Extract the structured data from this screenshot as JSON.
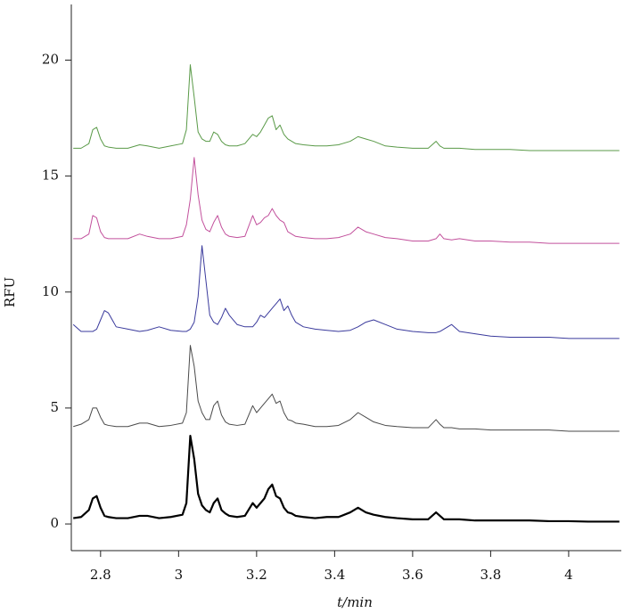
{
  "chart_data": {
    "type": "line",
    "xlabel": "t/min",
    "ylabel": "RFU",
    "xlim": [
      2.725,
      4.135
    ],
    "xticks": [
      2.8,
      3,
      3.2,
      3.4,
      3.6,
      3.8,
      4
    ],
    "ylim": [
      -1.15,
      22.4
    ],
    "yticks": [
      0,
      5,
      10,
      15,
      20
    ],
    "grid": false,
    "x": [
      2.73,
      2.75,
      2.77,
      2.78,
      2.79,
      2.8,
      2.81,
      2.82,
      2.84,
      2.87,
      2.9,
      2.92,
      2.95,
      2.98,
      3.01,
      3.02,
      3.03,
      3.04,
      3.05,
      3.06,
      3.07,
      3.08,
      3.09,
      3.1,
      3.11,
      3.12,
      3.13,
      3.15,
      3.17,
      3.19,
      3.2,
      3.21,
      3.22,
      3.23,
      3.24,
      3.25,
      3.26,
      3.27,
      3.28,
      3.29,
      3.3,
      3.32,
      3.35,
      3.38,
      3.41,
      3.44,
      3.46,
      3.48,
      3.5,
      3.53,
      3.56,
      3.6,
      3.64,
      3.66,
      3.67,
      3.68,
      3.7,
      3.72,
      3.76,
      3.8,
      3.85,
      3.9,
      3.95,
      4.0,
      4.05,
      4.1,
      4.13
    ],
    "series": [
      {
        "color": "#000000",
        "line_width": 2.2,
        "values": [
          0.25,
          0.3,
          0.6,
          1.1,
          1.2,
          0.7,
          0.35,
          0.3,
          0.25,
          0.25,
          0.35,
          0.35,
          0.25,
          0.3,
          0.4,
          0.9,
          3.8,
          2.8,
          1.3,
          0.8,
          0.6,
          0.5,
          0.9,
          1.1,
          0.6,
          0.45,
          0.35,
          0.3,
          0.35,
          0.9,
          0.7,
          0.9,
          1.1,
          1.5,
          1.7,
          1.2,
          1.1,
          0.7,
          0.5,
          0.45,
          0.35,
          0.3,
          0.25,
          0.3,
          0.3,
          0.5,
          0.7,
          0.5,
          0.4,
          0.3,
          0.25,
          0.2,
          0.2,
          0.5,
          0.35,
          0.2,
          0.2,
          0.2,
          0.15,
          0.15,
          0.15,
          0.15,
          0.12,
          0.12,
          0.1,
          0.1,
          0.1
        ]
      },
      {
        "color": "#4a4a4a",
        "line_width": 1,
        "values": [
          4.2,
          4.3,
          4.5,
          5.0,
          5.0,
          4.6,
          4.3,
          4.25,
          4.2,
          4.2,
          4.35,
          4.35,
          4.2,
          4.25,
          4.35,
          4.8,
          7.7,
          6.8,
          5.3,
          4.8,
          4.5,
          4.5,
          5.1,
          5.3,
          4.7,
          4.4,
          4.3,
          4.25,
          4.3,
          5.1,
          4.8,
          5.0,
          5.2,
          5.4,
          5.6,
          5.2,
          5.3,
          4.8,
          4.5,
          4.45,
          4.35,
          4.3,
          4.2,
          4.2,
          4.25,
          4.5,
          4.8,
          4.6,
          4.4,
          4.25,
          4.2,
          4.15,
          4.15,
          4.5,
          4.3,
          4.15,
          4.15,
          4.1,
          4.1,
          4.05,
          4.05,
          4.05,
          4.05,
          4.0,
          4.0,
          4.0,
          4.0
        ]
      },
      {
        "color": "#3a3a9c",
        "line_width": 1,
        "values": [
          8.6,
          8.3,
          8.3,
          8.3,
          8.4,
          8.8,
          9.2,
          9.1,
          8.5,
          8.4,
          8.3,
          8.35,
          8.5,
          8.35,
          8.3,
          8.3,
          8.4,
          8.7,
          9.8,
          12.0,
          10.5,
          9.0,
          8.7,
          8.6,
          8.9,
          9.3,
          9.0,
          8.6,
          8.5,
          8.5,
          8.7,
          9.0,
          8.9,
          9.1,
          9.3,
          9.5,
          9.7,
          9.2,
          9.4,
          9.0,
          8.7,
          8.5,
          8.4,
          8.35,
          8.3,
          8.35,
          8.5,
          8.7,
          8.8,
          8.6,
          8.4,
          8.3,
          8.25,
          8.25,
          8.3,
          8.4,
          8.6,
          8.3,
          8.2,
          8.1,
          8.05,
          8.05,
          8.05,
          8.0,
          8.0,
          8.0,
          8.0
        ]
      },
      {
        "color": "#c2509c",
        "line_width": 1,
        "values": [
          12.3,
          12.3,
          12.5,
          13.3,
          13.2,
          12.6,
          12.35,
          12.3,
          12.3,
          12.3,
          12.5,
          12.4,
          12.3,
          12.3,
          12.4,
          12.9,
          14.0,
          15.8,
          14.2,
          13.1,
          12.7,
          12.6,
          13.0,
          13.3,
          12.8,
          12.5,
          12.4,
          12.35,
          12.4,
          13.3,
          12.9,
          13.0,
          13.2,
          13.3,
          13.6,
          13.3,
          13.1,
          13.0,
          12.6,
          12.5,
          12.4,
          12.35,
          12.3,
          12.3,
          12.35,
          12.5,
          12.8,
          12.6,
          12.5,
          12.35,
          12.3,
          12.2,
          12.2,
          12.3,
          12.5,
          12.3,
          12.25,
          12.3,
          12.2,
          12.2,
          12.15,
          12.15,
          12.1,
          12.1,
          12.1,
          12.1,
          12.1
        ]
      },
      {
        "color": "#5a9a48",
        "line_width": 1,
        "values": [
          16.2,
          16.2,
          16.4,
          17.0,
          17.1,
          16.6,
          16.3,
          16.25,
          16.2,
          16.2,
          16.35,
          16.3,
          16.2,
          16.3,
          16.4,
          17.0,
          19.8,
          18.4,
          16.9,
          16.6,
          16.5,
          16.5,
          16.9,
          16.8,
          16.5,
          16.35,
          16.3,
          16.3,
          16.4,
          16.8,
          16.7,
          16.9,
          17.2,
          17.5,
          17.6,
          17.0,
          17.2,
          16.8,
          16.6,
          16.5,
          16.4,
          16.35,
          16.3,
          16.3,
          16.35,
          16.5,
          16.7,
          16.6,
          16.5,
          16.3,
          16.25,
          16.2,
          16.2,
          16.5,
          16.3,
          16.2,
          16.2,
          16.2,
          16.15,
          16.15,
          16.15,
          16.1,
          16.1,
          16.1,
          16.1,
          16.1,
          16.1
        ]
      }
    ]
  }
}
